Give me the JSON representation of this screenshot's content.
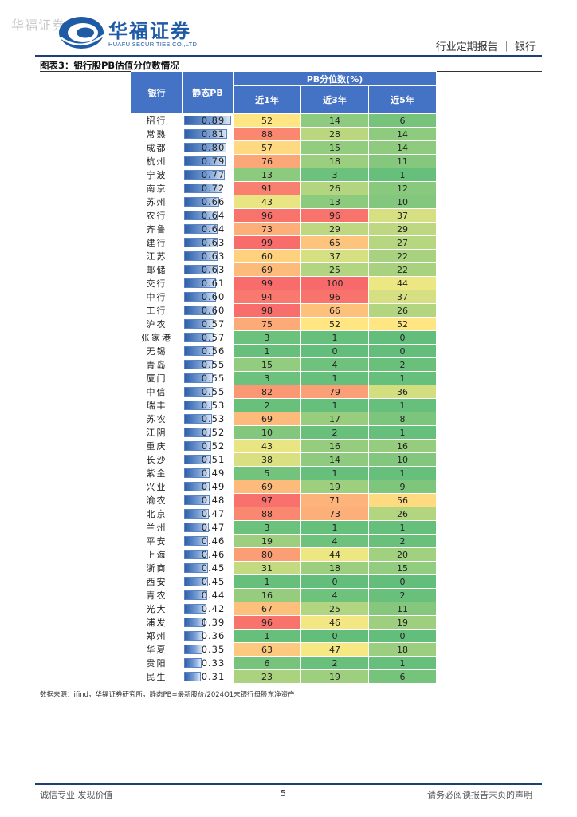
{
  "header": {
    "watermark": "华福证券",
    "logo_text": "华福证券",
    "logo_sub": "HUAFU SECURITIES CO.,LTD.",
    "report_type": "行业定期报告 ｜ 银行",
    "logo_colors": {
      "blue": "#1f5aa6"
    }
  },
  "figure": {
    "title": "图表3：银行股PB估值分位数情况",
    "source_note": "数据来源：ifind，华福证券研究所，静态PB=最新股价/2024Q1末银行母股东净资产"
  },
  "table": {
    "headers": {
      "bank": "银行",
      "pb": "静态PB",
      "percentile_group": "PB分位数(%)",
      "y1": "近1年",
      "y3": "近3年",
      "y5": "近5年"
    },
    "rows": [
      {
        "bank": "招行",
        "pb": "0.89",
        "y1": 52,
        "y3": 14,
        "y5": 6
      },
      {
        "bank": "常熟",
        "pb": "0.81",
        "y1": 88,
        "y3": 28,
        "y5": 14
      },
      {
        "bank": "成都",
        "pb": "0.80",
        "y1": 57,
        "y3": 15,
        "y5": 14
      },
      {
        "bank": "杭州",
        "pb": "0.79",
        "y1": 76,
        "y3": 18,
        "y5": 11
      },
      {
        "bank": "宁波",
        "pb": "0.77",
        "y1": 13,
        "y3": 3,
        "y5": 1
      },
      {
        "bank": "南京",
        "pb": "0.72",
        "y1": 91,
        "y3": 26,
        "y5": 12
      },
      {
        "bank": "苏州",
        "pb": "0.66",
        "y1": 43,
        "y3": 13,
        "y5": 10
      },
      {
        "bank": "农行",
        "pb": "0.64",
        "y1": 96,
        "y3": 96,
        "y5": 37
      },
      {
        "bank": "齐鲁",
        "pb": "0.64",
        "y1": 73,
        "y3": 29,
        "y5": 29
      },
      {
        "bank": "建行",
        "pb": "0.63",
        "y1": 99,
        "y3": 65,
        "y5": 27
      },
      {
        "bank": "江苏",
        "pb": "0.63",
        "y1": 60,
        "y3": 37,
        "y5": 22
      },
      {
        "bank": "邮储",
        "pb": "0.63",
        "y1": 69,
        "y3": 25,
        "y5": 22
      },
      {
        "bank": "交行",
        "pb": "0.61",
        "y1": 99,
        "y3": 100,
        "y5": 44
      },
      {
        "bank": "中行",
        "pb": "0.60",
        "y1": 94,
        "y3": 96,
        "y5": 37
      },
      {
        "bank": "工行",
        "pb": "0.60",
        "y1": 98,
        "y3": 66,
        "y5": 26
      },
      {
        "bank": "沪农",
        "pb": "0.57",
        "y1": 75,
        "y3": 52,
        "y5": 52
      },
      {
        "bank": "张家港",
        "pb": "0.57",
        "y1": 3,
        "y3": 1,
        "y5": 0
      },
      {
        "bank": "无锡",
        "pb": "0.56",
        "y1": 1,
        "y3": 0,
        "y5": 0
      },
      {
        "bank": "青岛",
        "pb": "0.55",
        "y1": 15,
        "y3": 4,
        "y5": 2
      },
      {
        "bank": "厦门",
        "pb": "0.55",
        "y1": 3,
        "y3": 1,
        "y5": 1
      },
      {
        "bank": "中信",
        "pb": "0.55",
        "y1": 82,
        "y3": 79,
        "y5": 36
      },
      {
        "bank": "瑞丰",
        "pb": "0.53",
        "y1": 2,
        "y3": 1,
        "y5": 1
      },
      {
        "bank": "苏农",
        "pb": "0.53",
        "y1": 69,
        "y3": 17,
        "y5": 8
      },
      {
        "bank": "江阴",
        "pb": "0.52",
        "y1": 10,
        "y3": 2,
        "y5": 1
      },
      {
        "bank": "重庆",
        "pb": "0.52",
        "y1": 43,
        "y3": 16,
        "y5": 16
      },
      {
        "bank": "长沙",
        "pb": "0.51",
        "y1": 38,
        "y3": 14,
        "y5": 10
      },
      {
        "bank": "紫金",
        "pb": "0.49",
        "y1": 5,
        "y3": 1,
        "y5": 1
      },
      {
        "bank": "兴业",
        "pb": "0.49",
        "y1": 69,
        "y3": 19,
        "y5": 9
      },
      {
        "bank": "渝农",
        "pb": "0.48",
        "y1": 97,
        "y3": 71,
        "y5": 56
      },
      {
        "bank": "北京",
        "pb": "0.47",
        "y1": 88,
        "y3": 73,
        "y5": 26
      },
      {
        "bank": "兰州",
        "pb": "0.47",
        "y1": 3,
        "y3": 1,
        "y5": 1
      },
      {
        "bank": "平安",
        "pb": "0.46",
        "y1": 19,
        "y3": 4,
        "y5": 2
      },
      {
        "bank": "上海",
        "pb": "0.46",
        "y1": 80,
        "y3": 44,
        "y5": 20
      },
      {
        "bank": "浙商",
        "pb": "0.45",
        "y1": 31,
        "y3": 18,
        "y5": 15
      },
      {
        "bank": "西安",
        "pb": "0.45",
        "y1": 1,
        "y3": 0,
        "y5": 0
      },
      {
        "bank": "青农",
        "pb": "0.44",
        "y1": 16,
        "y3": 4,
        "y5": 2
      },
      {
        "bank": "光大",
        "pb": "0.42",
        "y1": 67,
        "y3": 25,
        "y5": 11
      },
      {
        "bank": "浦发",
        "pb": "0.39",
        "y1": 96,
        "y3": 46,
        "y5": 19
      },
      {
        "bank": "郑州",
        "pb": "0.36",
        "y1": 1,
        "y3": 0,
        "y5": 0
      },
      {
        "bank": "华夏",
        "pb": "0.35",
        "y1": 63,
        "y3": 47,
        "y5": 18
      },
      {
        "bank": "贵阳",
        "pb": "0.33",
        "y1": 6,
        "y3": 2,
        "y5": 1
      },
      {
        "bank": "民生",
        "pb": "0.31",
        "y1": 23,
        "y3": 19,
        "y5": 6
      }
    ]
  },
  "footer": {
    "left": "诚信专业  发现价值",
    "page": "5",
    "right": "请务必阅读报告末页的声明"
  }
}
